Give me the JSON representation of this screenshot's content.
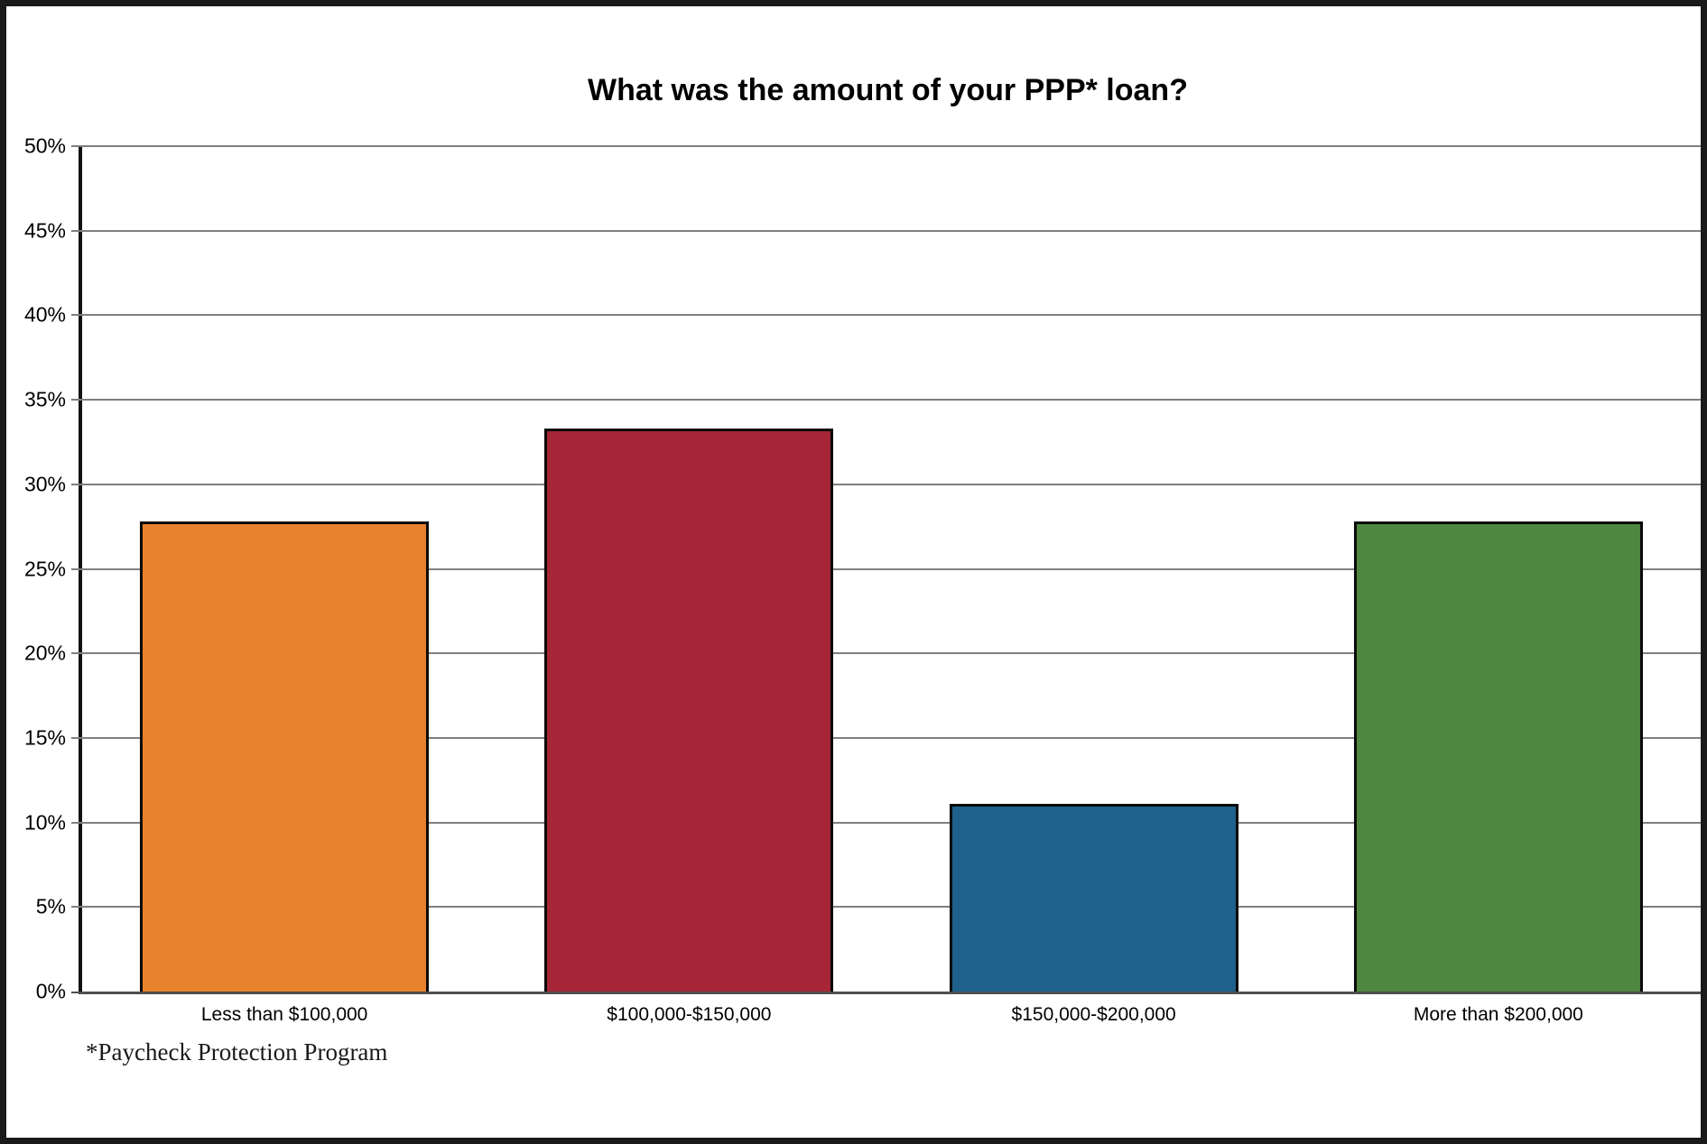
{
  "title": "What was the amount of your PPP* loan?",
  "footnote": "*Paycheck Protection Program",
  "colors": {
    "frame_border": "#1a1a1a",
    "gridline": "#7f7f7f",
    "y_axis": "#111111",
    "x_axis": "#4f4f4f",
    "bar_outline": "#0a0a0a",
    "text": "#000000"
  },
  "chart_data": {
    "type": "bar",
    "title": "What was the amount of your PPP* loan?",
    "categories": [
      "Less than $100,000",
      "$100,000-$150,000",
      "$150,000-$200,000",
      "More than $200,000"
    ],
    "values": [
      27.8,
      33.3,
      11.1,
      27.8
    ],
    "bar_colors": [
      "#E8822D",
      "#A62638",
      "#1F608C",
      "#4E8840"
    ],
    "xlabel": "",
    "ylabel": "",
    "ylim": [
      0,
      50
    ],
    "ytick_step": 5,
    "ytick_labels": [
      "0%",
      "5%",
      "10%",
      "15%",
      "20%",
      "25%",
      "30%",
      "35%",
      "40%",
      "45%",
      "50%"
    ],
    "grid": true,
    "legend_position": "none",
    "annotation": "*Paycheck Protection Program"
  }
}
